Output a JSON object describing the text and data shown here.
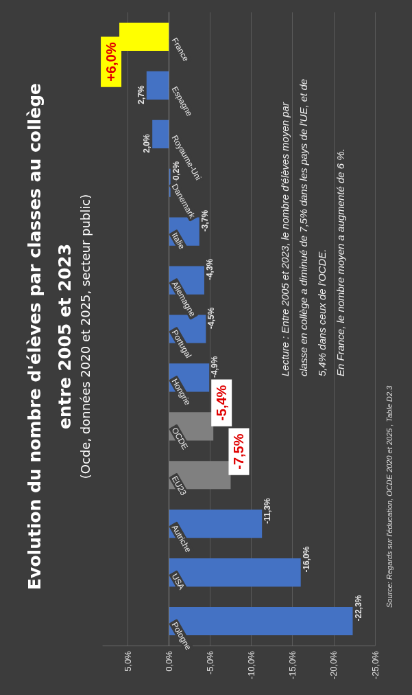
{
  "chart_data": {
    "type": "bar",
    "title": "Evolution du nombre d'élèves par classes au collège\nentre 2005 et 2023",
    "subtitle": "(Ocde, données 2020 et 2025, secteur public)",
    "orientation": "horizontal",
    "categories": [
      "France",
      "Espagne",
      "Royaume-Uni",
      "Danemark",
      "Italie",
      "Allemagne",
      "Portugal",
      "Hongrie",
      "OCDE",
      "EU23",
      "Autriche",
      "USA",
      "Pologne"
    ],
    "values": [
      6.0,
      2.7,
      2.0,
      -0.2,
      -3.7,
      -4.3,
      -4.5,
      -4.9,
      -5.4,
      -7.5,
      -11.3,
      -16.0,
      -22.3
    ],
    "value_labels": [
      "+6,0%",
      "2,7%",
      "2,0%",
      "-0,2%",
      "-3,7%",
      "-4,3%",
      "-4,5%",
      "-4,9%",
      "-5,4%",
      "-7,5%",
      "-11,3%",
      "-16,0%",
      "-22,3%"
    ],
    "colors": [
      "#ffff00",
      "#4472c4",
      "#4472c4",
      "#4472c4",
      "#4472c4",
      "#4472c4",
      "#4472c4",
      "#4472c4",
      "#808080",
      "#808080",
      "#4472c4",
      "#4472c4",
      "#4472c4"
    ],
    "xlim": [
      8,
      -25
    ],
    "xticks": [
      {
        "value": 5,
        "label": "5,0%"
      },
      {
        "value": 0,
        "label": "0,0%"
      },
      {
        "value": -5,
        "label": "-5,0%"
      },
      {
        "value": -10,
        "label": "-10,0%"
      },
      {
        "value": -15,
        "label": "-15,0%"
      },
      {
        "value": -20,
        "label": "-20,0%"
      },
      {
        "value": -25,
        "label": "-25,0%"
      }
    ],
    "grid": "x",
    "annotations": [
      "Lecture : Entre 2005 et 2023, le nombre d'élèves moyen par\nclasse en collège a diminué de 7,5% dans les pays de l'UE, et de\n5,4% dans ceux de l'OCDE.\nEn France, le nombre moyen a augmenté de 6 %.",
      "Source: Regards sur l'éducation, OCDE 2020 et 2025 , Table D2.3"
    ]
  }
}
